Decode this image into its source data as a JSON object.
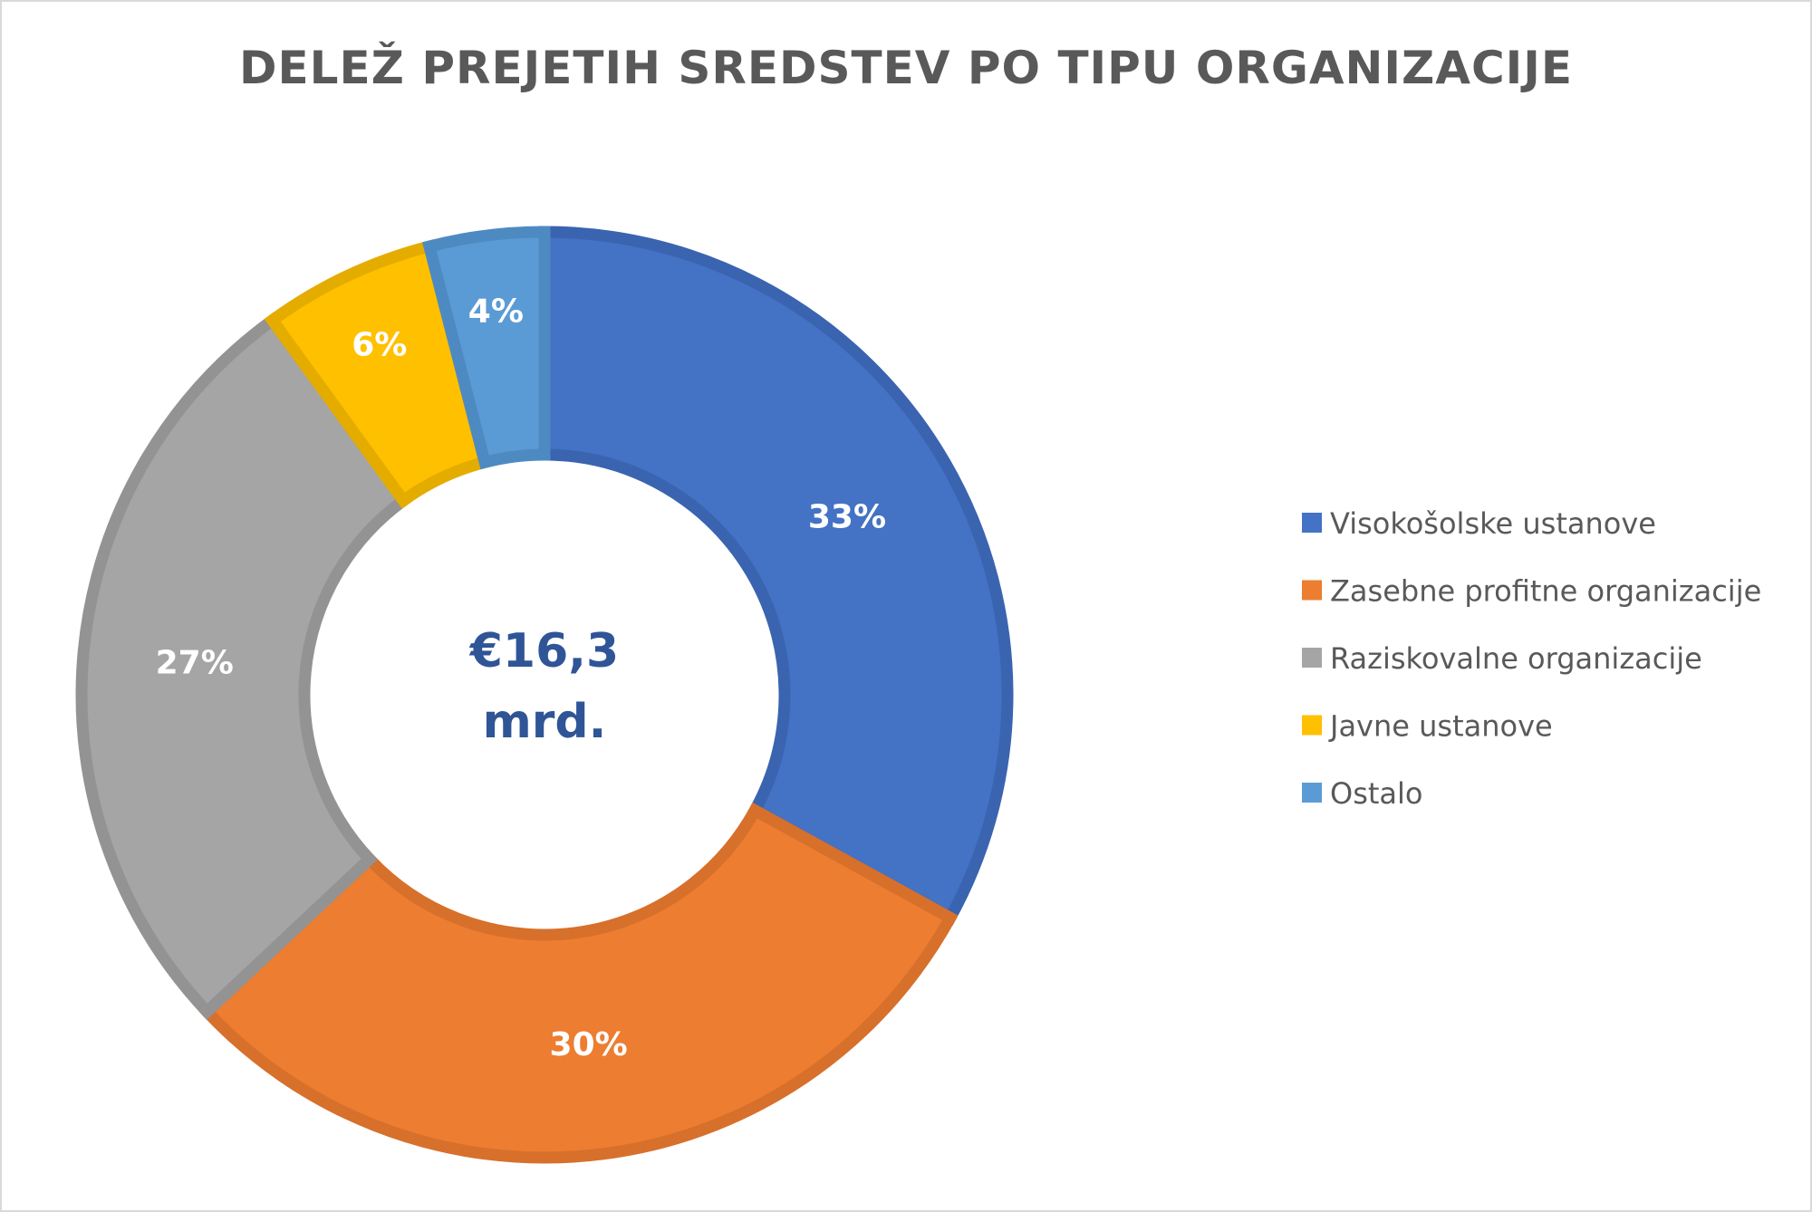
{
  "chart_data": {
    "type": "pie",
    "variant": "donut",
    "title": "DELEŽ PREJETIH SREDSTEV PO TIPU ORGANIZACIJE",
    "center_label": [
      "€16,3",
      "mrd."
    ],
    "categories": [
      "Visokošolske ustanove",
      "Zasebne profitne organizacije",
      "Raziskovalne organizacije",
      "Javne ustanove",
      "Ostalo"
    ],
    "values": [
      33,
      30,
      27,
      6,
      4
    ],
    "data_labels": [
      "33%",
      "30%",
      "27%",
      "6%",
      "4%"
    ],
    "colors": [
      "#4472C4",
      "#ED7D31",
      "#A5A5A5",
      "#FFC000",
      "#5B9BD5"
    ],
    "border_colors": [
      "#3A64B0",
      "#D7702B",
      "#939393",
      "#E5AC00",
      "#4E8AC2"
    ],
    "legend_position": "right"
  }
}
